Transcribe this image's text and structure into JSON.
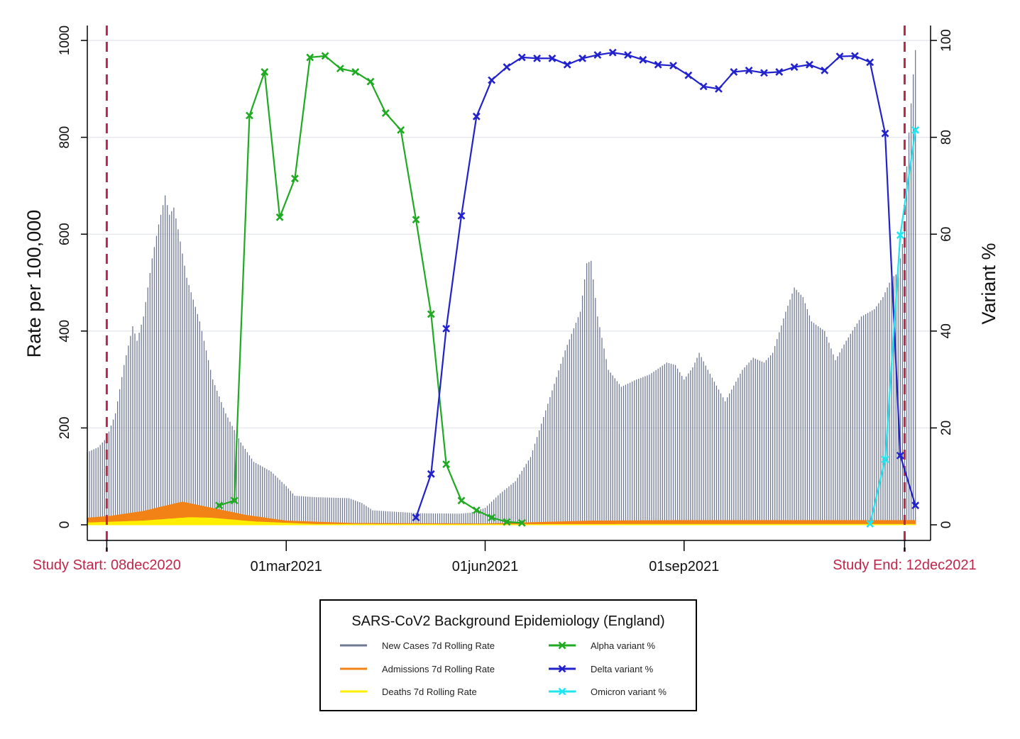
{
  "chart_data": {
    "type": "bar",
    "title": "SARS-CoV2 Background Epidemiology (England)",
    "ylabel": "Rate per 100,000",
    "y2label": "Variant %",
    "ylim": [
      0,
      1000
    ],
    "y2lim": [
      0,
      100
    ],
    "yticks": [
      "0",
      "200",
      "400",
      "600",
      "800",
      "1000"
    ],
    "y2ticks": [
      "0",
      "20",
      "40",
      "60",
      "80",
      "100"
    ],
    "xlim": [
      "2020-11-29",
      "2021-12-24"
    ],
    "xticks": [
      {
        "date": "2021-03-01",
        "label": "01mar2021"
      },
      {
        "date": "2021-06-01",
        "label": "01jun2021"
      },
      {
        "date": "2021-09-01",
        "label": "01sep2021"
      }
    ],
    "reference_lines": [
      {
        "date": "2020-12-08",
        "label": "Study Start: 08dec2020",
        "color": "#c0264a"
      },
      {
        "date": "2021-12-12",
        "label": "Study End: 12dec2021",
        "color": "#c0264a"
      }
    ],
    "grid": true,
    "legend_position": "bottom-center",
    "legend": [
      {
        "name": "New Cases 7d Rolling Rate",
        "color": "#6f7893",
        "marker": "none"
      },
      {
        "name": "Alpha variant %",
        "color": "#1faa22",
        "marker": "x"
      },
      {
        "name": "Admissions 7d Rolling Rate",
        "color": "#f28216",
        "marker": "none"
      },
      {
        "name": "Delta variant %",
        "color": "#2222cc",
        "marker": "x"
      },
      {
        "name": "Deaths 7d Rolling Rate",
        "color": "#ffee00",
        "marker": "none"
      },
      {
        "name": "Omicron variant %",
        "color": "#1fe5f0",
        "marker": "x"
      }
    ],
    "series": [
      {
        "name": "New Cases 7d Rolling Rate",
        "kind": "bars",
        "axis": "left",
        "color": "#6f7893",
        "points": [
          [
            "2020-11-29",
            150
          ],
          [
            "2020-12-04",
            160
          ],
          [
            "2020-12-08",
            180
          ],
          [
            "2020-12-12",
            230
          ],
          [
            "2020-12-16",
            330
          ],
          [
            "2020-12-20",
            410
          ],
          [
            "2020-12-22",
            380
          ],
          [
            "2020-12-25",
            430
          ],
          [
            "2020-12-29",
            550
          ],
          [
            "2021-01-01",
            620
          ],
          [
            "2021-01-04",
            680
          ],
          [
            "2021-01-06",
            640
          ],
          [
            "2021-01-08",
            655
          ],
          [
            "2021-01-10",
            610
          ],
          [
            "2021-01-14",
            510
          ],
          [
            "2021-01-20",
            420
          ],
          [
            "2021-01-26",
            300
          ],
          [
            "2021-02-01",
            230
          ],
          [
            "2021-02-08",
            170
          ],
          [
            "2021-02-14",
            130
          ],
          [
            "2021-02-22",
            110
          ],
          [
            "2021-03-01",
            80
          ],
          [
            "2021-03-05",
            60
          ],
          [
            "2021-03-15",
            57
          ],
          [
            "2021-03-30",
            55
          ],
          [
            "2021-04-05",
            45
          ],
          [
            "2021-04-10",
            30
          ],
          [
            "2021-04-20",
            27
          ],
          [
            "2021-05-01",
            24
          ],
          [
            "2021-05-20",
            23
          ],
          [
            "2021-05-25",
            25
          ],
          [
            "2021-06-01",
            35
          ],
          [
            "2021-06-08",
            65
          ],
          [
            "2021-06-15",
            90
          ],
          [
            "2021-06-22",
            140
          ],
          [
            "2021-06-30",
            250
          ],
          [
            "2021-07-08",
            360
          ],
          [
            "2021-07-15",
            440
          ],
          [
            "2021-07-18",
            540
          ],
          [
            "2021-07-20",
            545
          ],
          [
            "2021-07-23",
            430
          ],
          [
            "2021-07-28",
            320
          ],
          [
            "2021-08-03",
            285
          ],
          [
            "2021-08-10",
            300
          ],
          [
            "2021-08-16",
            310
          ],
          [
            "2021-08-24",
            335
          ],
          [
            "2021-08-28",
            330
          ],
          [
            "2021-09-01",
            300
          ],
          [
            "2021-09-05",
            325
          ],
          [
            "2021-09-08",
            355
          ],
          [
            "2021-09-12",
            320
          ],
          [
            "2021-09-20",
            255
          ],
          [
            "2021-09-28",
            320
          ],
          [
            "2021-10-03",
            345
          ],
          [
            "2021-10-08",
            335
          ],
          [
            "2021-10-12",
            355
          ],
          [
            "2021-10-18",
            440
          ],
          [
            "2021-10-22",
            490
          ],
          [
            "2021-10-26",
            470
          ],
          [
            "2021-10-30",
            420
          ],
          [
            "2021-11-05",
            400
          ],
          [
            "2021-11-10",
            340
          ],
          [
            "2021-11-15",
            380
          ],
          [
            "2021-11-22",
            430
          ],
          [
            "2021-11-28",
            445
          ],
          [
            "2021-12-02",
            470
          ],
          [
            "2021-12-06",
            510
          ],
          [
            "2021-12-09",
            520
          ],
          [
            "2021-12-12",
            610
          ],
          [
            "2021-12-13",
            740
          ],
          [
            "2021-12-14",
            810
          ],
          [
            "2021-12-15",
            870
          ],
          [
            "2021-12-16",
            930
          ],
          [
            "2021-12-17",
            980
          ]
        ]
      },
      {
        "name": "Admissions 7d Rolling Rate",
        "kind": "area",
        "axis": "left",
        "color": "#f28216",
        "points": [
          [
            "2020-11-29",
            14
          ],
          [
            "2020-12-10",
            18
          ],
          [
            "2020-12-25",
            28
          ],
          [
            "2021-01-08",
            43
          ],
          [
            "2021-01-12",
            47
          ],
          [
            "2021-01-25",
            35
          ],
          [
            "2021-02-10",
            20
          ],
          [
            "2021-03-01",
            8
          ],
          [
            "2021-04-01",
            3
          ],
          [
            "2021-06-01",
            2
          ],
          [
            "2021-07-20",
            8
          ],
          [
            "2021-09-01",
            9
          ],
          [
            "2021-11-01",
            9
          ],
          [
            "2021-12-17",
            9
          ]
        ]
      },
      {
        "name": "Deaths 7d Rolling Rate",
        "kind": "area",
        "axis": "left",
        "color": "#ffee00",
        "points": [
          [
            "2020-11-29",
            4
          ],
          [
            "2020-12-25",
            8
          ],
          [
            "2021-01-15",
            15
          ],
          [
            "2021-01-25",
            14
          ],
          [
            "2021-02-15",
            6
          ],
          [
            "2021-03-15",
            1
          ],
          [
            "2021-06-01",
            0.5
          ],
          [
            "2021-09-01",
            1
          ],
          [
            "2021-12-17",
            1
          ]
        ]
      },
      {
        "name": "Alpha variant %",
        "kind": "line",
        "axis": "right",
        "color": "#1faa22",
        "marker": "x",
        "points": [
          [
            "2021-01-29",
            4
          ],
          [
            "2021-02-05",
            5
          ],
          [
            "2021-02-12",
            84.5
          ],
          [
            "2021-02-19",
            93.5
          ],
          [
            "2021-02-26",
            63.5
          ],
          [
            "2021-03-05",
            71.5
          ],
          [
            "2021-03-12",
            96.5
          ],
          [
            "2021-03-19",
            96.8
          ],
          [
            "2021-03-26",
            94.2
          ],
          [
            "2021-04-02",
            93.5
          ],
          [
            "2021-04-09",
            91.5
          ],
          [
            "2021-04-16",
            85
          ],
          [
            "2021-04-23",
            81.5
          ],
          [
            "2021-04-30",
            63
          ],
          [
            "2021-05-07",
            43.5
          ],
          [
            "2021-05-14",
            12.5
          ],
          [
            "2021-05-21",
            5
          ],
          [
            "2021-05-28",
            3
          ],
          [
            "2021-06-04",
            1.5
          ],
          [
            "2021-06-11",
            0.6
          ],
          [
            "2021-06-18",
            0.4
          ]
        ]
      },
      {
        "name": "Delta variant %",
        "kind": "line",
        "axis": "right",
        "color": "#2222cc",
        "marker": "x",
        "points": [
          [
            "2021-04-30",
            1.5
          ],
          [
            "2021-05-07",
            10.5
          ],
          [
            "2021-05-14",
            40.5
          ],
          [
            "2021-05-21",
            63.8
          ],
          [
            "2021-05-28",
            84.3
          ],
          [
            "2021-06-04",
            91.8
          ],
          [
            "2021-06-11",
            94.5
          ],
          [
            "2021-06-18",
            96.5
          ],
          [
            "2021-06-25",
            96.3
          ],
          [
            "2021-07-02",
            96.3
          ],
          [
            "2021-07-09",
            95
          ],
          [
            "2021-07-16",
            96.3
          ],
          [
            "2021-07-23",
            97
          ],
          [
            "2021-07-30",
            97.5
          ],
          [
            "2021-08-06",
            97
          ],
          [
            "2021-08-13",
            96
          ],
          [
            "2021-08-20",
            95
          ],
          [
            "2021-08-27",
            94.8
          ],
          [
            "2021-09-03",
            92.8
          ],
          [
            "2021-09-10",
            90.5
          ],
          [
            "2021-09-17",
            90
          ],
          [
            "2021-09-24",
            93.5
          ],
          [
            "2021-10-01",
            93.8
          ],
          [
            "2021-10-08",
            93.3
          ],
          [
            "2021-10-15",
            93.5
          ],
          [
            "2021-10-22",
            94.5
          ],
          [
            "2021-10-29",
            95
          ],
          [
            "2021-11-05",
            93.8
          ],
          [
            "2021-11-12",
            96.7
          ],
          [
            "2021-11-19",
            96.8
          ],
          [
            "2021-11-26",
            95.5
          ],
          [
            "2021-12-03",
            80.8
          ],
          [
            "2021-12-10",
            14.3
          ],
          [
            "2021-12-17",
            4
          ]
        ]
      },
      {
        "name": "Omicron variant %",
        "kind": "line",
        "axis": "right",
        "color": "#1fe5f0",
        "marker": "x",
        "points": [
          [
            "2021-11-26",
            0.2
          ],
          [
            "2021-12-03",
            13.5
          ],
          [
            "2021-12-10",
            59.8
          ],
          [
            "2021-12-17",
            81.5
          ]
        ]
      }
    ]
  }
}
